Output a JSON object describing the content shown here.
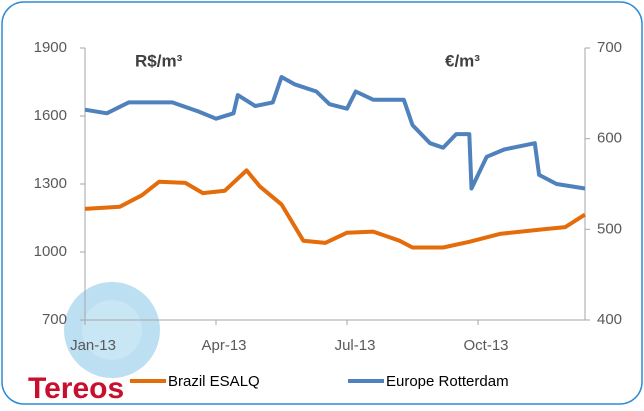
{
  "chart_data": {
    "type": "line",
    "left_unit": "R$/m³",
    "right_unit": "€/m³",
    "logo": "Tereos",
    "xlim": [
      0,
      11.45
    ],
    "xticks": [
      {
        "value": 0,
        "label": "Jan-13"
      },
      {
        "value": 3,
        "label": "Apr-13"
      },
      {
        "value": 6,
        "label": "Jul-13"
      },
      {
        "value": 9,
        "label": "Oct-13"
      }
    ],
    "ylim": [
      700,
      1900
    ],
    "yticks": [
      700,
      1000,
      1300,
      1600,
      1900
    ],
    "y2lim": [
      400,
      700
    ],
    "y2ticks": [
      400,
      500,
      600,
      700
    ],
    "grid": false,
    "legend": "bottom",
    "series": [
      {
        "name": "Brazil ESALQ",
        "color": "#e46c0a",
        "x": [
          0,
          0.8,
          1.3,
          1.7,
          2.3,
          2.7,
          3.2,
          3.7,
          4,
          4.5,
          5,
          5.5,
          6,
          6.6,
          7.2,
          7.5,
          8.2,
          8.8,
          9.5,
          10.5,
          11,
          11.45
        ],
        "values": [
          1190,
          1200,
          1250,
          1310,
          1305,
          1260,
          1270,
          1360,
          1290,
          1210,
          1050,
          1040,
          1085,
          1090,
          1050,
          1020,
          1020,
          1045,
          1080,
          1100,
          1110,
          1165
        ]
      },
      {
        "name": "Europe Rotterdam",
        "color": "#4f81bd",
        "axis": "y2",
        "x": [
          0,
          0.5,
          1,
          2,
          2.6,
          3,
          3.4,
          3.5,
          3.9,
          4.3,
          4.5,
          4.8,
          5.3,
          5.6,
          6,
          6.2,
          6.6,
          7.3,
          7.5,
          7.9,
          8.2,
          8.5,
          8.8,
          8.85,
          9.2,
          9.6,
          10.3,
          10.4,
          10.8,
          11.45
        ],
        "values": [
          632,
          628,
          640,
          640,
          630,
          622,
          628,
          648,
          636,
          640,
          668,
          660,
          652,
          638,
          633,
          652,
          643,
          643,
          615,
          595,
          590,
          605,
          605,
          545,
          580,
          588,
          595,
          560,
          550,
          545
        ]
      }
    ]
  }
}
